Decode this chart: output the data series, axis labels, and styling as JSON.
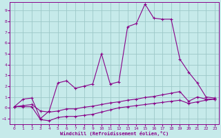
{
  "xlabel": "Windchill (Refroidissement éolien,°C)",
  "bg_color": "#c6eaea",
  "grid_color": "#9dc8c8",
  "line_color": "#880088",
  "xlim": [
    -0.5,
    23.5
  ],
  "ylim": [
    -1.5,
    9.8
  ],
  "yticks": [
    -1,
    0,
    1,
    2,
    3,
    4,
    5,
    6,
    7,
    8,
    9
  ],
  "xticks": [
    0,
    1,
    2,
    3,
    4,
    5,
    6,
    7,
    8,
    9,
    10,
    11,
    12,
    13,
    14,
    15,
    16,
    17,
    18,
    19,
    20,
    21,
    22,
    23
  ],
  "line1_x": [
    0,
    1,
    2,
    3,
    4,
    5,
    6,
    7,
    8,
    9,
    10,
    11,
    12,
    13,
    14,
    15,
    16,
    17,
    18,
    19,
    20,
    21,
    22,
    23
  ],
  "line1_y": [
    0.1,
    0.8,
    0.9,
    -1.0,
    -0.3,
    2.3,
    2.5,
    1.8,
    2.0,
    2.2,
    5.0,
    2.2,
    2.4,
    7.5,
    7.8,
    9.6,
    8.3,
    8.2,
    8.2,
    4.5,
    3.3,
    2.3,
    1.0,
    0.9
  ],
  "line2_x": [
    0,
    1,
    2,
    3,
    4,
    5,
    6,
    7,
    8,
    9,
    10,
    11,
    12,
    13,
    14,
    15,
    16,
    17,
    18,
    19,
    20,
    21,
    22,
    23
  ],
  "line2_y": [
    0.1,
    0.2,
    0.3,
    -0.3,
    -0.4,
    -0.3,
    -0.1,
    -0.1,
    0.05,
    0.15,
    0.3,
    0.45,
    0.55,
    0.7,
    0.8,
    0.95,
    1.05,
    1.2,
    1.35,
    1.5,
    0.6,
    1.0,
    0.8,
    0.8
  ],
  "line3_x": [
    0,
    1,
    2,
    3,
    4,
    5,
    6,
    7,
    8,
    9,
    10,
    11,
    12,
    13,
    14,
    15,
    16,
    17,
    18,
    19,
    20,
    21,
    22,
    23
  ],
  "line3_y": [
    0.1,
    0.1,
    0.1,
    -1.1,
    -1.2,
    -0.9,
    -0.8,
    -0.8,
    -0.7,
    -0.6,
    -0.4,
    -0.2,
    0.0,
    0.1,
    0.2,
    0.3,
    0.4,
    0.5,
    0.6,
    0.7,
    0.4,
    0.55,
    0.7,
    0.8
  ]
}
